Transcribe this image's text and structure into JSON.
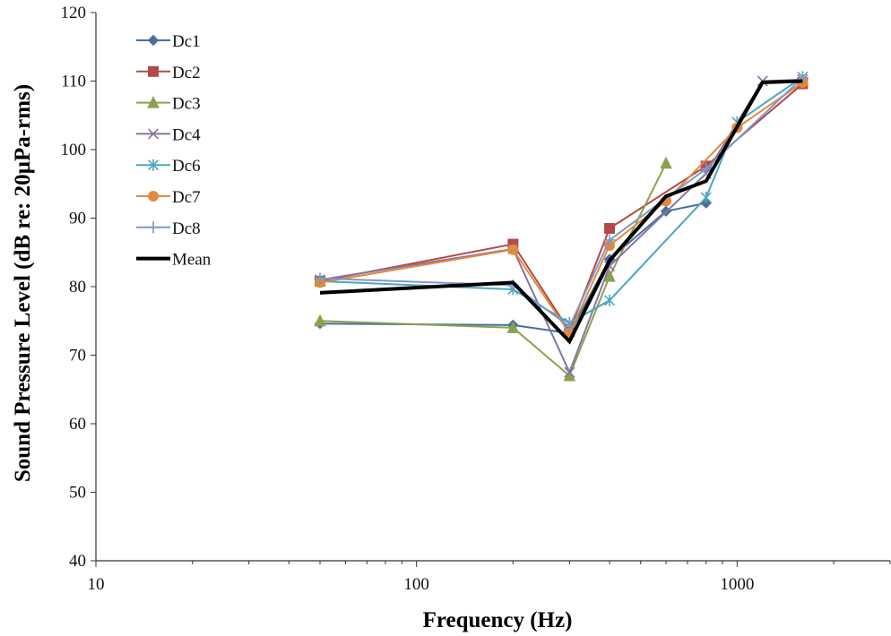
{
  "chart_data": {
    "type": "line",
    "xlabel": "Frequency (Hz)",
    "ylabel": "Sound Pressure Level (dB re: 20µPa-rms)",
    "x_scale": "log",
    "xlim": [
      10,
      3000
    ],
    "ylim": [
      40,
      120
    ],
    "x_ticks": [
      10,
      100,
      1000
    ],
    "y_ticks": [
      40,
      50,
      60,
      70,
      80,
      90,
      100,
      110,
      120
    ],
    "grid": false,
    "legend_position": "top-left",
    "series": [
      {
        "name": "Dc1",
        "color": "#4a6e9c",
        "marker": "diamond",
        "x": [
          50,
          200,
          300,
          400,
          600,
          800
        ],
        "y": [
          74.6,
          74.4,
          73.2,
          84,
          91,
          92.2
        ]
      },
      {
        "name": "Dc2",
        "color": "#b24a47",
        "marker": "square",
        "x": [
          50,
          200,
          300,
          400,
          800,
          1600
        ],
        "y": [
          80.8,
          86.2,
          73.5,
          88.5,
          97.6,
          109.6
        ]
      },
      {
        "name": "Dc3",
        "color": "#8aa14e",
        "marker": "triangle",
        "x": [
          50,
          200,
          300,
          400,
          600
        ],
        "y": [
          75,
          74,
          67,
          81.5,
          98
        ]
      },
      {
        "name": "Dc4",
        "color": "#8674a6",
        "marker": "x",
        "x": [
          50,
          200,
          300,
          400,
          800,
          1200,
          1600
        ],
        "y": [
          81,
          85.5,
          67.5,
          83,
          96.5,
          110,
          110.2
        ]
      },
      {
        "name": "Dc6",
        "color": "#4ba7bd",
        "marker": "star",
        "x": [
          50,
          200,
          300,
          400,
          800,
          1000,
          1600
        ],
        "y": [
          80.8,
          79.6,
          74.7,
          78,
          93,
          104,
          110.6
        ]
      },
      {
        "name": "Dc7",
        "color": "#e08a3c",
        "marker": "circle",
        "x": [
          50,
          200,
          300,
          400,
          600,
          1000,
          1600
        ],
        "y": [
          80.6,
          85.4,
          73.2,
          86,
          92.5,
          103.2,
          109.8
        ]
      },
      {
        "name": "Dc8",
        "color": "#7f98c9",
        "marker": "plus",
        "x": [
          50,
          200,
          300,
          400,
          800,
          1600
        ],
        "y": [
          81.2,
          80.2,
          74.2,
          86.8,
          97.2,
          110.5
        ]
      },
      {
        "name": "Mean",
        "color": "#000000",
        "marker": "none",
        "line_width": 4,
        "x": [
          50,
          200,
          300,
          400,
          600,
          800,
          1200,
          1600
        ],
        "y": [
          79.1,
          80.6,
          72,
          83.8,
          93.2,
          95.4,
          109.8,
          110
        ]
      }
    ]
  }
}
